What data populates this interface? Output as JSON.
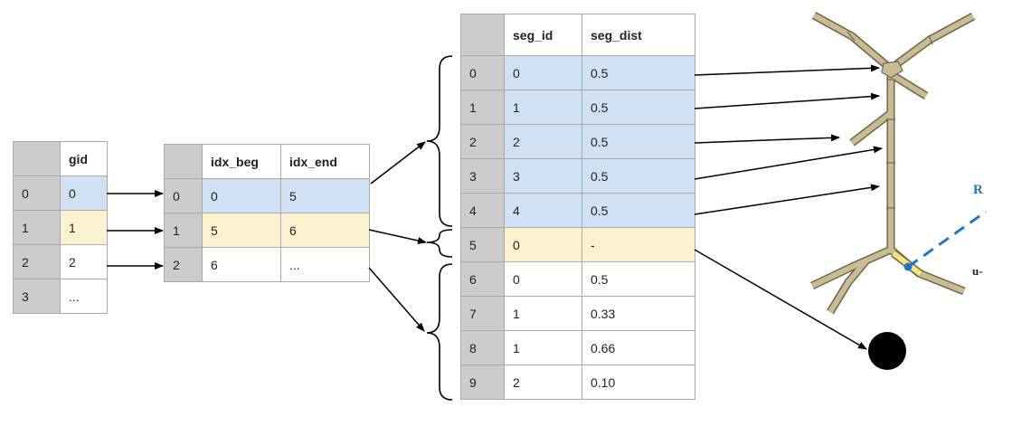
{
  "gid_table": {
    "header": "gid",
    "rows": [
      {
        "idx": "0",
        "gid": "0",
        "color": "blue"
      },
      {
        "idx": "1",
        "gid": "1",
        "color": "yellow"
      },
      {
        "idx": "2",
        "gid": "2",
        "color": "white"
      },
      {
        "idx": "3",
        "gid": "...",
        "color": "white"
      }
    ]
  },
  "idx_table": {
    "headers": [
      "idx_beg",
      "idx_end"
    ],
    "rows": [
      {
        "idx": "0",
        "beg": "0",
        "end": "5",
        "color": "blue"
      },
      {
        "idx": "1",
        "beg": "5",
        "end": "6",
        "color": "yellow"
      },
      {
        "idx": "2",
        "beg": "6",
        "end": "...",
        "color": "white"
      }
    ]
  },
  "seg_table": {
    "headers": [
      "seg_id",
      "seg_dist"
    ],
    "rows": [
      {
        "idx": "0",
        "seg_id": "0",
        "seg_dist": "0.5",
        "color": "blue"
      },
      {
        "idx": "1",
        "seg_id": "1",
        "seg_dist": "0.5",
        "color": "blue"
      },
      {
        "idx": "2",
        "seg_id": "2",
        "seg_dist": "0.5",
        "color": "blue"
      },
      {
        "idx": "3",
        "seg_id": "3",
        "seg_dist": "0.5",
        "color": "blue"
      },
      {
        "idx": "4",
        "seg_id": "4",
        "seg_dist": "0.5",
        "color": "blue"
      },
      {
        "idx": "5",
        "seg_id": "0",
        "seg_dist": "-",
        "color": "yellow"
      },
      {
        "idx": "6",
        "seg_id": "0",
        "seg_dist": "0.5",
        "color": "white"
      },
      {
        "idx": "7",
        "seg_id": "1",
        "seg_dist": "0.33",
        "color": "white"
      },
      {
        "idx": "8",
        "seg_id": "1",
        "seg_dist": "0.66",
        "color": "white"
      },
      {
        "idx": "9",
        "seg_id": "2",
        "seg_dist": "0.10",
        "color": "white"
      }
    ]
  },
  "colors": {
    "blue_fill": "#cfe1f3",
    "yellow_fill": "#fdf2d0",
    "index_fill": "#cccccc",
    "grid_line": "#a9a9a9",
    "neuron_fill": "#c9bc92",
    "neuron_stroke": "#6f6651",
    "highlight_segment": "#f3e77a",
    "synapse_line": "#1f77c4",
    "soma_point": "#000000"
  },
  "neuron": {
    "label_fragment_1": "R",
    "label_fragment_2": "u-"
  }
}
